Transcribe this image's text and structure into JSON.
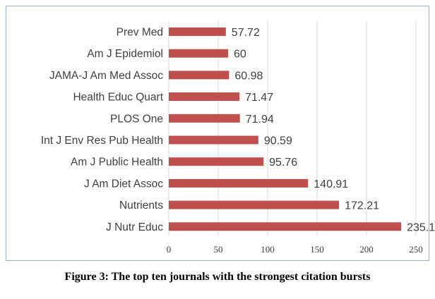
{
  "caption": "Figure 3: The top ten journals with the strongest citation bursts",
  "colors": {
    "bar": "#c0504d",
    "grid": "#d9d9d9",
    "text": "#404040",
    "frame_border": "#9fb2c6"
  },
  "chart_data": {
    "type": "bar",
    "orientation": "horizontal",
    "categories": [
      "Prev Med",
      "Am J Epidemiol",
      "JAMA-J Am Med Assoc",
      "Health Educ Quart",
      "PLOS One",
      "Int J Env Res Pub Health",
      "Am J Public Health",
      "J Am Diet Assoc",
      "Nutrients",
      "J Nutr Educ"
    ],
    "values": [
      57.72,
      60,
      60.98,
      71.47,
      71.94,
      90.59,
      95.76,
      140.91,
      172.21,
      235.1
    ],
    "value_labels": [
      "57.72",
      "60",
      "60.98",
      "71.47",
      "71.94",
      "90.59",
      "95.76",
      "140.91",
      "172.21",
      "235.1"
    ],
    "xlim": [
      0,
      250
    ],
    "xticks": [
      0,
      50,
      100,
      150,
      200,
      250
    ],
    "xtick_labels": [
      "0",
      "50",
      "100",
      "150",
      "200",
      "250"
    ],
    "grid": true,
    "legend": false,
    "title": "",
    "xlabel": "",
    "ylabel": ""
  }
}
